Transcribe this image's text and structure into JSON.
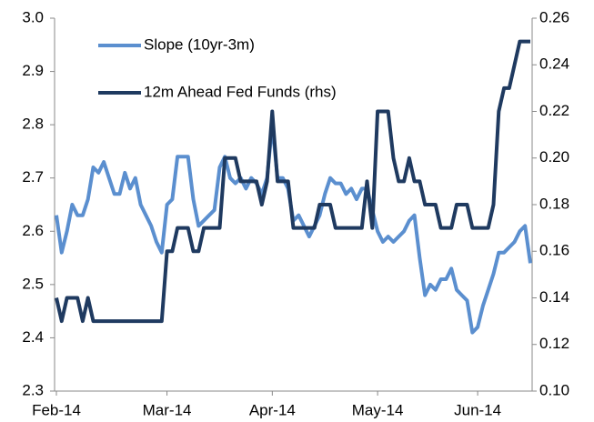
{
  "chart_data": {
    "type": "line",
    "categories": [
      "Feb-14",
      null,
      null,
      null,
      null,
      null,
      null,
      null,
      null,
      null,
      null,
      null,
      null,
      null,
      null,
      null,
      null,
      null,
      null,
      null,
      null,
      "Mar-14",
      null,
      null,
      null,
      null,
      null,
      null,
      null,
      null,
      null,
      null,
      null,
      null,
      null,
      null,
      null,
      null,
      null,
      null,
      null,
      "Apr-14",
      null,
      null,
      null,
      null,
      null,
      null,
      null,
      null,
      null,
      null,
      null,
      null,
      null,
      null,
      null,
      null,
      null,
      null,
      null,
      "May-14",
      null,
      null,
      null,
      null,
      null,
      null,
      null,
      null,
      null,
      null,
      null,
      null,
      null,
      null,
      null,
      null,
      null,
      null,
      "Jun-14",
      null,
      null,
      null,
      null,
      null,
      null,
      null,
      null,
      null,
      null
    ],
    "series": [
      {
        "name": "Slope (10yr-3m)",
        "color": "#5b8fcf",
        "values": [
          2.63,
          2.56,
          2.6,
          2.65,
          2.63,
          2.63,
          2.66,
          2.72,
          2.71,
          2.73,
          2.7,
          2.67,
          2.67,
          2.71,
          2.68,
          2.7,
          2.65,
          2.63,
          2.61,
          2.58,
          2.56,
          2.65,
          2.66,
          2.74,
          2.74,
          2.74,
          2.66,
          2.61,
          2.62,
          2.63,
          2.64,
          2.72,
          2.74,
          2.7,
          2.69,
          2.7,
          2.68,
          2.7,
          2.69,
          2.67,
          2.7,
          2.8,
          2.7,
          2.7,
          2.68,
          2.62,
          2.63,
          2.61,
          2.59,
          2.61,
          2.63,
          2.67,
          2.7,
          2.69,
          2.69,
          2.67,
          2.68,
          2.66,
          2.68,
          2.68,
          2.64,
          2.6,
          2.58,
          2.59,
          2.58,
          2.59,
          2.6,
          2.62,
          2.63,
          2.55,
          2.48,
          2.5,
          2.49,
          2.51,
          2.51,
          2.53,
          2.49,
          2.48,
          2.47,
          2.41,
          2.42,
          2.46,
          2.49,
          2.52,
          2.56,
          2.56,
          2.57,
          2.58,
          2.6,
          2.61,
          2.54
        ]
      },
      {
        "name": "12m Ahead Fed Funds (rhs)",
        "color": "#1f3a60",
        "axis": "y2",
        "values": [
          0.14,
          0.13,
          0.14,
          0.14,
          0.14,
          0.13,
          0.14,
          0.13,
          0.13,
          0.13,
          0.13,
          0.13,
          0.13,
          0.13,
          0.13,
          0.13,
          0.13,
          0.13,
          0.13,
          0.13,
          0.13,
          0.16,
          0.16,
          0.17,
          0.17,
          0.17,
          0.16,
          0.16,
          0.17,
          0.17,
          0.17,
          0.17,
          0.2,
          0.2,
          0.2,
          0.19,
          0.19,
          0.19,
          0.19,
          0.18,
          0.19,
          0.22,
          0.19,
          0.19,
          0.19,
          0.17,
          0.17,
          0.17,
          0.17,
          0.17,
          0.18,
          0.18,
          0.18,
          0.17,
          0.17,
          0.17,
          0.17,
          0.17,
          0.17,
          0.19,
          0.17,
          0.22,
          0.22,
          0.22,
          0.2,
          0.19,
          0.19,
          0.2,
          0.19,
          0.19,
          0.18,
          0.18,
          0.18,
          0.17,
          0.17,
          0.17,
          0.18,
          0.18,
          0.18,
          0.17,
          0.17,
          0.17,
          0.17,
          0.18,
          0.22,
          0.23,
          0.23,
          0.24,
          0.25,
          0.25,
          0.25
        ]
      }
    ],
    "ylim": [
      2.3,
      3.0
    ],
    "yticks": [
      {
        "value": 2.3,
        "label": "2.3"
      },
      {
        "value": 2.4,
        "label": "2.4"
      },
      {
        "value": 2.5,
        "label": "2.5"
      },
      {
        "value": 2.6,
        "label": "2.6"
      },
      {
        "value": 2.7,
        "label": "2.7"
      },
      {
        "value": 2.8,
        "label": "2.8"
      },
      {
        "value": 2.9,
        "label": "2.9"
      },
      {
        "value": 3.0,
        "label": "3.0"
      }
    ],
    "y2lim": [
      0.1,
      0.26
    ],
    "y2ticks": [
      {
        "value": 0.1,
        "label": "0.10"
      },
      {
        "value": 0.12,
        "label": "0.12"
      },
      {
        "value": 0.14,
        "label": "0.14"
      },
      {
        "value": 0.16,
        "label": "0.16"
      },
      {
        "value": 0.18,
        "label": "0.18"
      },
      {
        "value": 0.2,
        "label": "0.20"
      },
      {
        "value": 0.22,
        "label": "0.22"
      },
      {
        "value": 0.24,
        "label": "0.24"
      },
      {
        "value": 0.26,
        "label": "0.26"
      }
    ],
    "legend": "top-left"
  }
}
